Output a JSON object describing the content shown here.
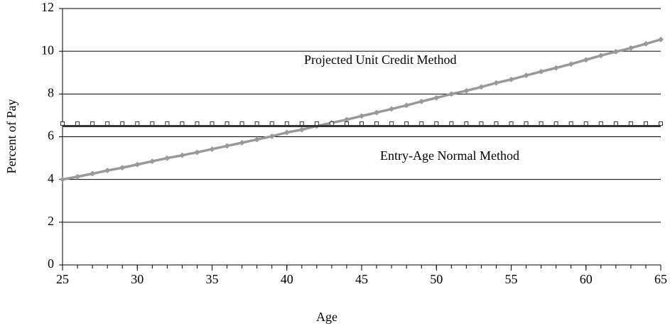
{
  "chart_data": {
    "type": "line",
    "x": [
      25,
      26,
      27,
      28,
      29,
      30,
      31,
      32,
      33,
      34,
      35,
      36,
      37,
      38,
      39,
      40,
      41,
      42,
      43,
      44,
      45,
      46,
      47,
      48,
      49,
      50,
      51,
      52,
      53,
      54,
      55,
      56,
      57,
      58,
      59,
      60,
      61,
      62,
      63,
      64,
      65
    ],
    "series": [
      {
        "name": "Projected Unit Credit Method",
        "color": "#999999",
        "marker": "diamond",
        "values": [
          4.0,
          4.13,
          4.27,
          4.42,
          4.55,
          4.7,
          4.85,
          5.0,
          5.13,
          5.27,
          5.42,
          5.57,
          5.72,
          5.87,
          6.02,
          6.2,
          6.33,
          6.5,
          6.65,
          6.8,
          6.97,
          7.13,
          7.3,
          7.47,
          7.65,
          7.82,
          8.0,
          8.15,
          8.33,
          8.52,
          8.68,
          8.87,
          9.05,
          9.22,
          9.4,
          9.6,
          9.8,
          9.98,
          10.15,
          10.35,
          10.55
        ]
      },
      {
        "name": "Entry-Age Normal Method",
        "color": "#333333",
        "marker": "square",
        "values": [
          6.5,
          6.5,
          6.5,
          6.5,
          6.5,
          6.5,
          6.5,
          6.5,
          6.5,
          6.5,
          6.5,
          6.5,
          6.5,
          6.5,
          6.5,
          6.5,
          6.5,
          6.5,
          6.5,
          6.5,
          6.5,
          6.5,
          6.5,
          6.5,
          6.5,
          6.5,
          6.5,
          6.5,
          6.5,
          6.5,
          6.5,
          6.5,
          6.5,
          6.5,
          6.5,
          6.5,
          6.5,
          6.5,
          6.5,
          6.5,
          6.5
        ]
      }
    ],
    "xlabel": "Age",
    "ylabel": "Percent of Pay",
    "xlim": [
      25,
      65
    ],
    "xticks": [
      25,
      30,
      35,
      40,
      45,
      50,
      55,
      60,
      65
    ],
    "ylim": [
      0,
      12
    ],
    "yticks": [
      0,
      2,
      4,
      6,
      8,
      10,
      12
    ],
    "grid": true
  }
}
